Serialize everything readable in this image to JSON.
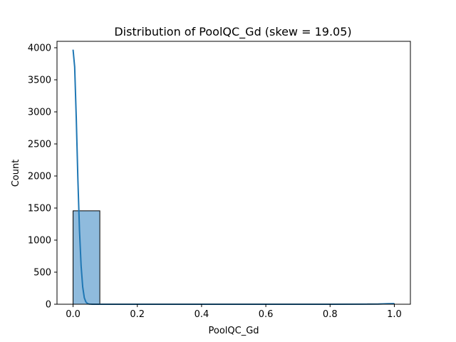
{
  "chart_data": {
    "type": "bar",
    "title": "Distribution of PoolQC_Gd (skew = 19.05)",
    "xlabel": "PoolQC_Gd",
    "ylabel": "Count",
    "xlim": [
      -0.05,
      1.05
    ],
    "ylim": [
      0,
      4100
    ],
    "x_ticks": [
      0.0,
      0.2,
      0.4,
      0.6,
      0.8,
      1.0
    ],
    "x_tick_labels": [
      "0.0",
      "0.2",
      "0.4",
      "0.6",
      "0.8",
      "1.0"
    ],
    "y_ticks": [
      0,
      500,
      1000,
      1500,
      2000,
      2500,
      3000,
      3500,
      4000
    ],
    "y_tick_labels": [
      "0",
      "500",
      "1000",
      "1500",
      "2000",
      "2500",
      "3000",
      "3500",
      "4000"
    ],
    "grid": false,
    "histogram": {
      "bins": [
        {
          "x0": 0.0,
          "x1": 0.0833,
          "count": 1457
        },
        {
          "x0": 0.0833,
          "x1": 0.1667,
          "count": 0
        },
        {
          "x0": 0.1667,
          "x1": 0.25,
          "count": 0
        },
        {
          "x0": 0.25,
          "x1": 0.3333,
          "count": 0
        },
        {
          "x0": 0.3333,
          "x1": 0.4167,
          "count": 0
        },
        {
          "x0": 0.4167,
          "x1": 0.5,
          "count": 0
        },
        {
          "x0": 0.5,
          "x1": 0.5833,
          "count": 0
        },
        {
          "x0": 0.5833,
          "x1": 0.6667,
          "count": 0
        },
        {
          "x0": 0.6667,
          "x1": 0.75,
          "count": 0
        },
        {
          "x0": 0.75,
          "x1": 0.8333,
          "count": 0
        },
        {
          "x0": 0.8333,
          "x1": 0.9167,
          "count": 0
        },
        {
          "x0": 0.9167,
          "x1": 1.0,
          "count": 3
        }
      ],
      "fill_color": "#8fbbdd",
      "edge_color": "#000000"
    },
    "kde": {
      "color": "#1f77b4",
      "x": [
        0.0,
        0.005,
        0.01,
        0.015,
        0.02,
        0.025,
        0.03,
        0.035,
        0.04,
        0.045,
        0.05,
        0.06,
        0.08,
        0.1,
        0.2,
        0.4,
        0.6,
        0.8,
        0.95,
        0.98,
        1.0
      ],
      "y": [
        3970,
        3700,
        2900,
        1950,
        1150,
        600,
        270,
        100,
        35,
        10,
        3,
        0,
        0,
        0,
        0,
        0,
        0,
        0,
        3,
        8,
        10
      ]
    }
  }
}
